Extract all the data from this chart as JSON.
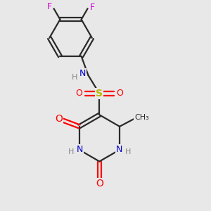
{
  "bg_color": "#e8e8e8",
  "bond_color": "#2a2a2a",
  "colors": {
    "N": "#0000cc",
    "O": "#ff0000",
    "S": "#b8b800",
    "F": "#cc00cc",
    "C": "#2a2a2a",
    "H": "#888888"
  }
}
